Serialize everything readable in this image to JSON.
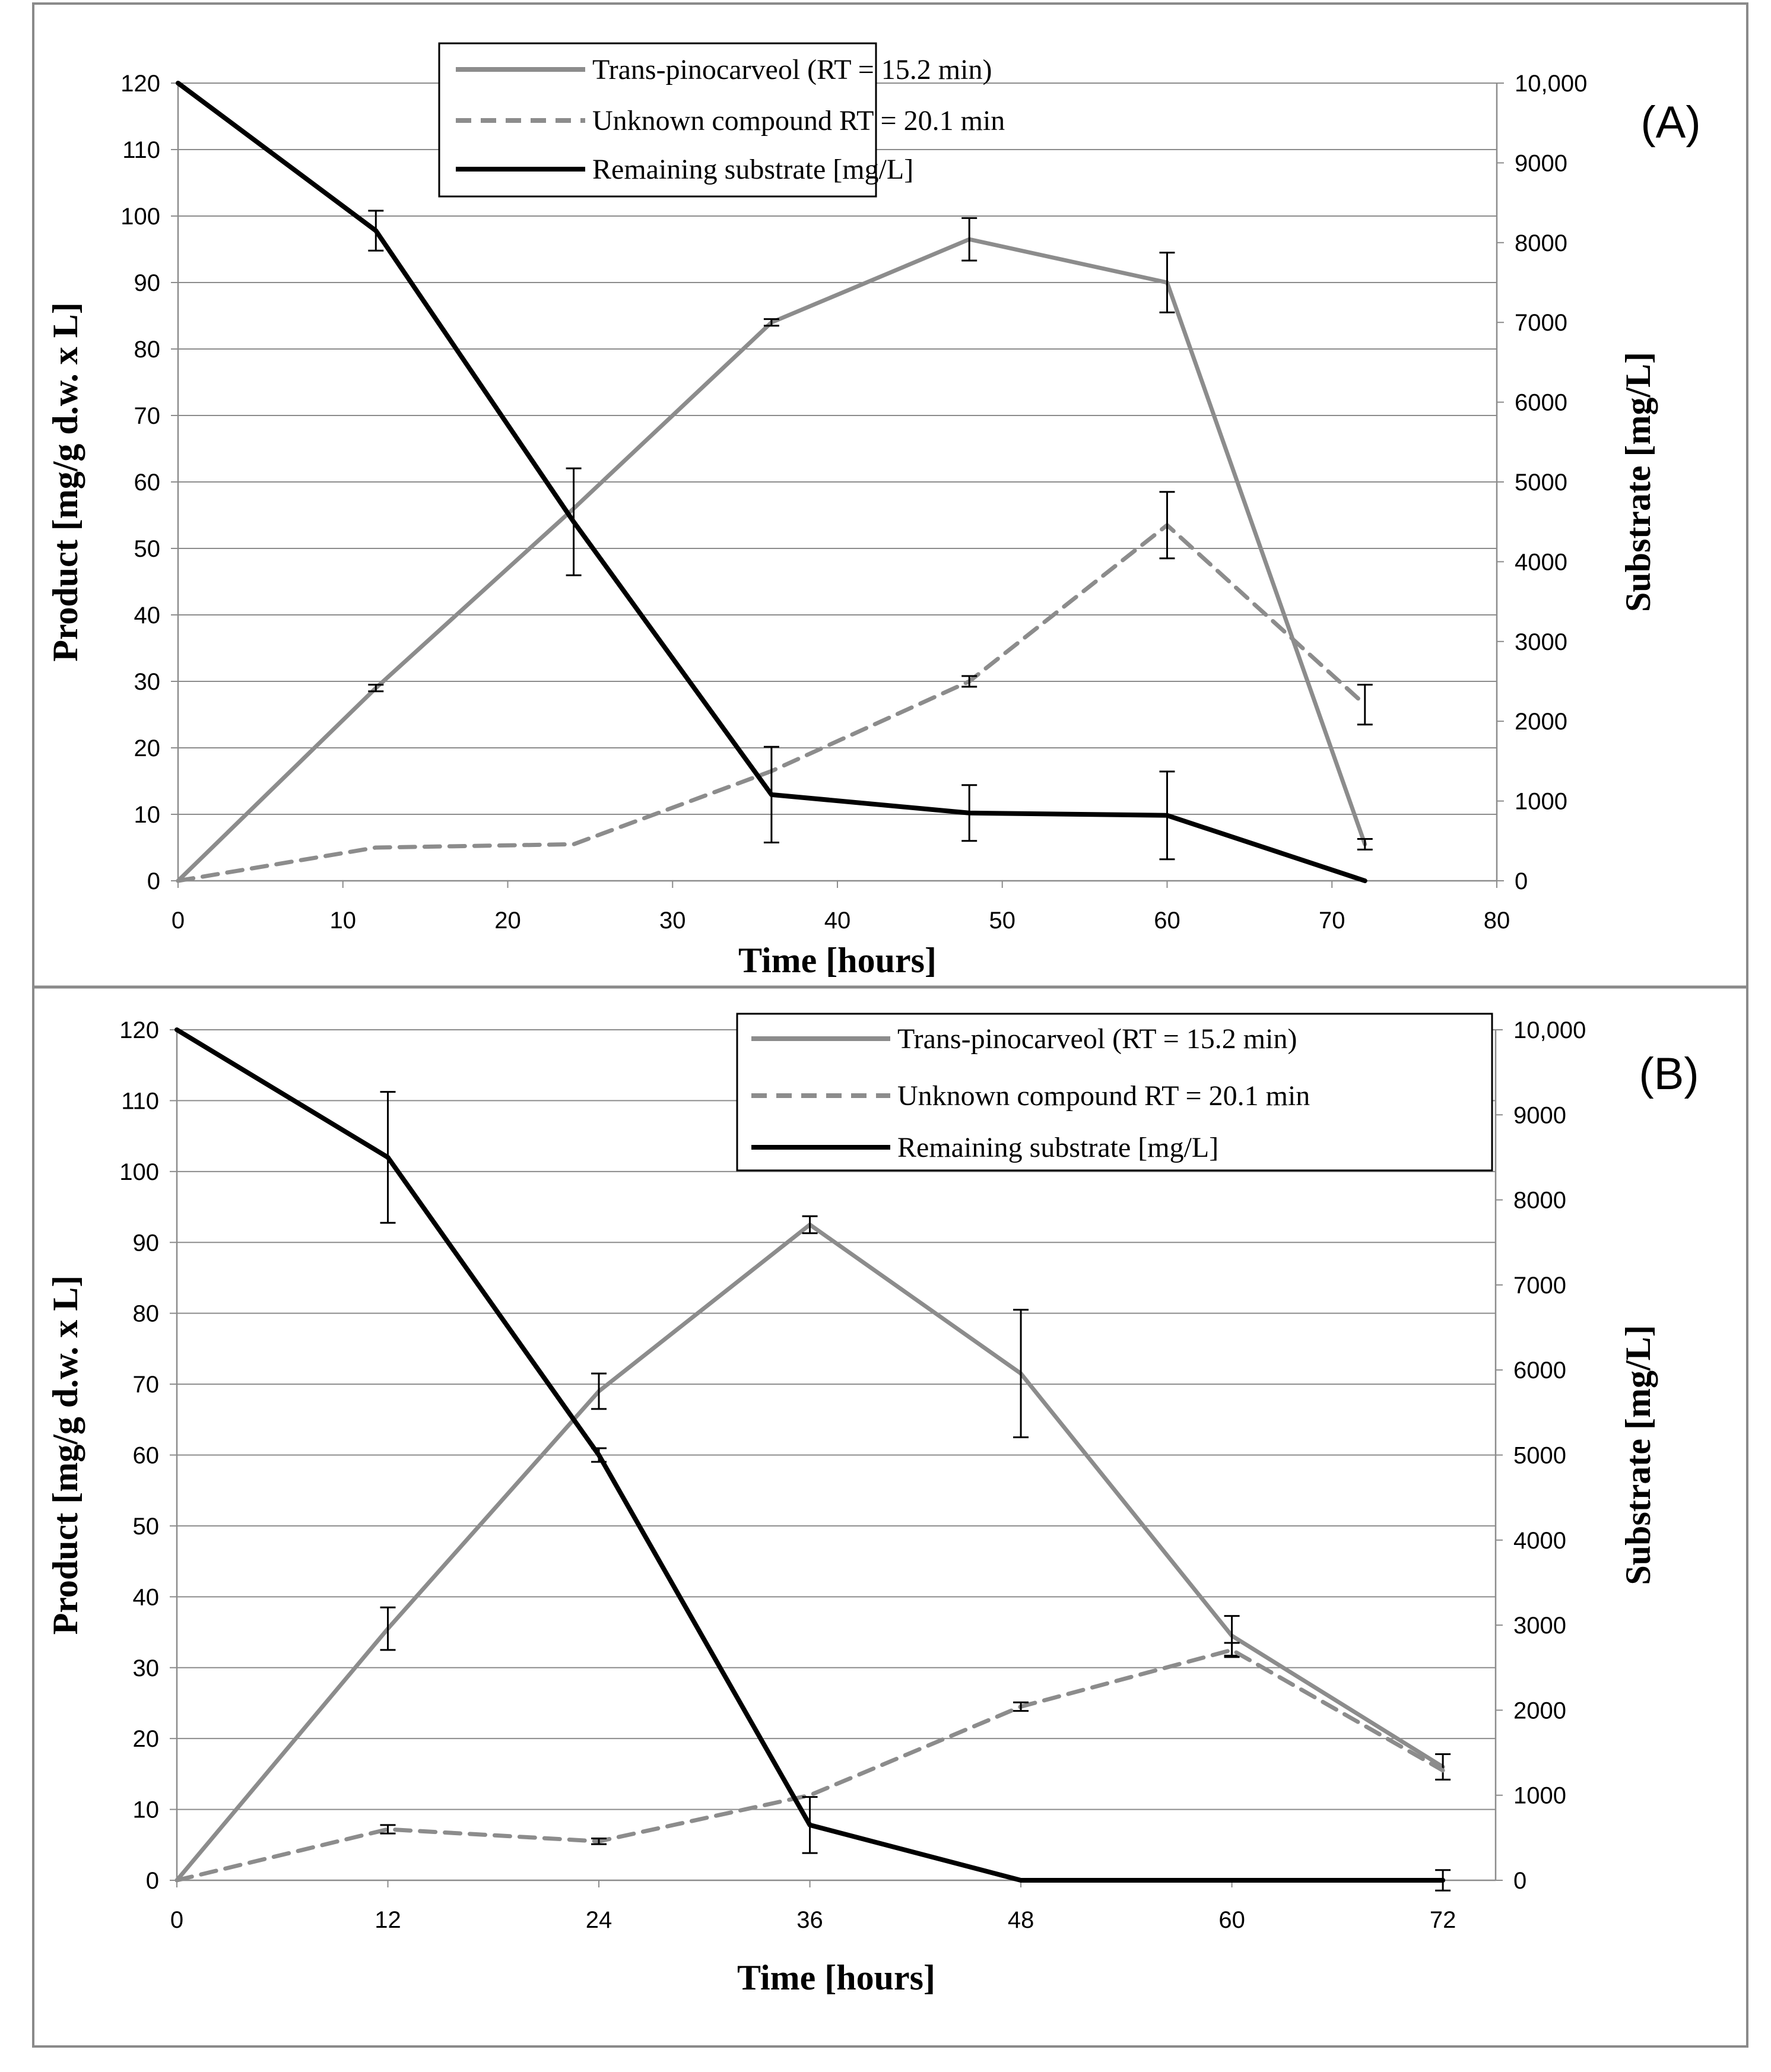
{
  "chart_data": [
    {
      "type": "line",
      "panel_label": "(A)",
      "xlabel": "Time [hours]",
      "ylabel": "Product [mg/g d.w. x L]",
      "y2label": "Substrate [mg/L]",
      "xlim": [
        0,
        80
      ],
      "ylim": [
        0,
        120
      ],
      "y2lim": [
        0,
        10000
      ],
      "x_ticks": [
        0,
        10,
        20,
        30,
        40,
        50,
        60,
        70,
        80
      ],
      "y_ticks": [
        0,
        10,
        20,
        30,
        40,
        50,
        60,
        70,
        80,
        90,
        100,
        110,
        120
      ],
      "y2_ticks": [
        0,
        1000,
        2000,
        3000,
        4000,
        5000,
        6000,
        7000,
        8000,
        9000,
        10000
      ],
      "y2_tick_labels": [
        "0",
        "1000",
        "2000",
        "3000",
        "4000",
        "5000",
        "6000",
        "7000",
        "8000",
        "9000",
        "10,000"
      ],
      "grid": true,
      "legend_position": "top-center",
      "series": [
        {
          "name": "Trans-pinocarveol (RT = 15.2 min)",
          "axis": "left",
          "style": "solid",
          "color": "#8c8c8c",
          "x": [
            0,
            12,
            24,
            36,
            48,
            60,
            72
          ],
          "values": [
            0,
            29,
            56,
            84,
            96.5,
            90,
            5.5
          ],
          "errors": [
            0,
            0.5,
            0,
            0.5,
            3.2,
            4.5,
            0.8
          ]
        },
        {
          "name": "Unknown compound  RT = 20.1 min",
          "axis": "left",
          "style": "dashed",
          "color": "#8c8c8c",
          "x": [
            0,
            12,
            24,
            36,
            48,
            60,
            72
          ],
          "values": [
            0,
            5,
            5.5,
            16.5,
            30,
            53.5,
            26.5
          ],
          "errors": [
            0,
            0,
            0,
            0,
            0.8,
            5,
            3
          ]
        },
        {
          "name": "Remaining substrate [mg/L]",
          "axis": "right",
          "style": "solid",
          "color": "#000000",
          "x": [
            0,
            12,
            24,
            36,
            48,
            60,
            72
          ],
          "values": [
            10000,
            8150,
            4500,
            1080,
            850,
            820,
            0
          ],
          "errors": [
            0,
            250,
            670,
            600,
            350,
            550,
            0
          ]
        }
      ]
    },
    {
      "type": "line",
      "panel_label": "(B)",
      "xlabel": "Time [hours]",
      "ylabel": "Product [mg/g d.w. x L]",
      "y2label": "Substrate [mg/L]",
      "xlim": [
        0,
        75
      ],
      "ylim": [
        0,
        120
      ],
      "y2lim": [
        0,
        10000
      ],
      "x_ticks": [
        0,
        12,
        24,
        36,
        48,
        60,
        72
      ],
      "y_ticks": [
        0,
        10,
        20,
        30,
        40,
        50,
        60,
        70,
        80,
        90,
        100,
        110,
        120
      ],
      "y2_ticks": [
        0,
        1000,
        2000,
        3000,
        4000,
        5000,
        6000,
        7000,
        8000,
        9000,
        10000
      ],
      "y2_tick_labels": [
        "0",
        "1000",
        "2000",
        "3000",
        "4000",
        "5000",
        "6000",
        "7000",
        "8000",
        "9000",
        "10,000"
      ],
      "grid": true,
      "legend_position": "top-right",
      "series": [
        {
          "name": "Trans-pinocarveol (RT = 15.2 min)",
          "axis": "left",
          "style": "solid",
          "color": "#8c8c8c",
          "x": [
            0,
            12,
            24,
            36,
            48,
            60,
            72
          ],
          "values": [
            0,
            35.5,
            69,
            92.5,
            71.5,
            34.5,
            16
          ],
          "errors": [
            0,
            3,
            2.5,
            1.2,
            9,
            2.8,
            1.8
          ]
        },
        {
          "name": "Unknown compound RT = 20.1 min",
          "axis": "left",
          "style": "dashed",
          "color": "#8c8c8c",
          "x": [
            0,
            12,
            24,
            36,
            48,
            60,
            72
          ],
          "values": [
            0,
            7.2,
            5.5,
            12,
            24.5,
            32.5,
            15.5
          ],
          "errors": [
            0,
            0.6,
            0.4,
            0,
            0.6,
            1,
            0
          ]
        },
        {
          "name": "Remaining substrate [mg/L]",
          "axis": "right",
          "style": "solid",
          "color": "#000000",
          "x": [
            0,
            12,
            24,
            36,
            48,
            60,
            72
          ],
          "values": [
            10000,
            8500,
            5000,
            650,
            0,
            0,
            0
          ],
          "errors": [
            0,
            770,
            80,
            330,
            0,
            0,
            120
          ]
        }
      ]
    }
  ]
}
